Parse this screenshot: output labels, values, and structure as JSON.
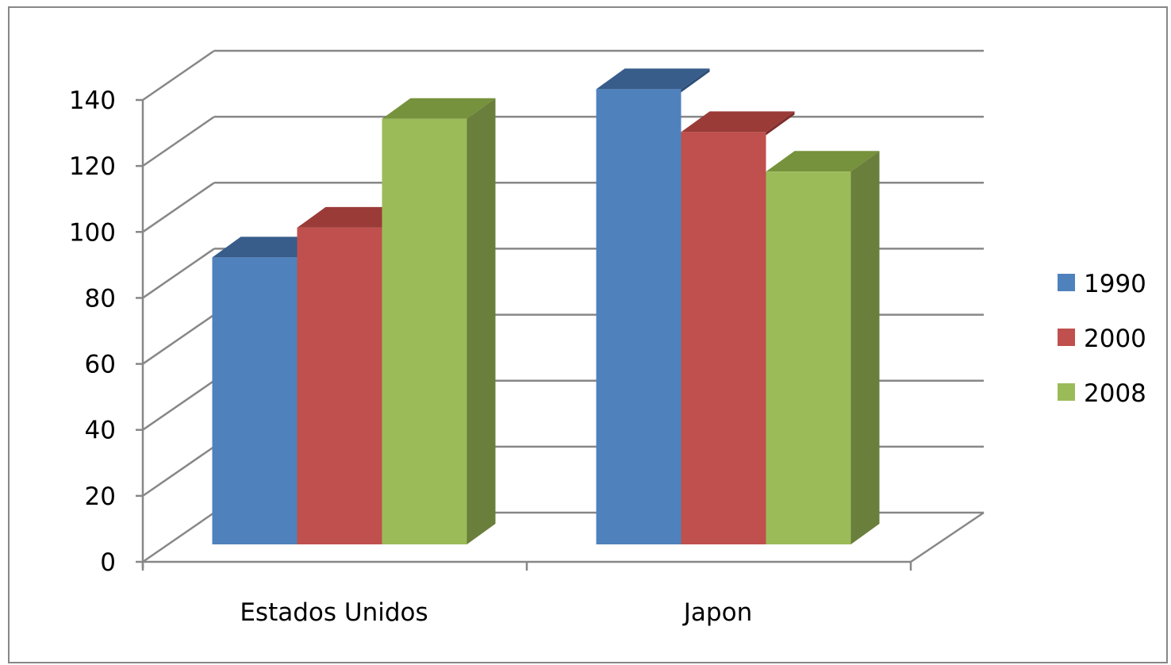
{
  "chart_data": {
    "type": "bar",
    "style": "3d-clustered-column",
    "categories": [
      "Estados Unidos",
      "Japon"
    ],
    "series": [
      {
        "name": "1990",
        "values": [
          87,
          138
        ],
        "color": "#4f81bd",
        "top_color": "#385d8a",
        "side_color": "#2e4f78"
      },
      {
        "name": "2000",
        "values": [
          96,
          125
        ],
        "color": "#c0504d",
        "top_color": "#9b3b38",
        "side_color": "#7e2e2c"
      },
      {
        "name": "2008",
        "values": [
          129,
          113
        ],
        "color": "#9bbb59",
        "top_color": "#76923c",
        "side_color": "#6a7f3c"
      }
    ],
    "yticks": [
      "0",
      "20",
      "40",
      "60",
      "80",
      "100",
      "120",
      "140"
    ],
    "ylim": [
      0,
      140
    ],
    "grid": true,
    "legend_position": "right",
    "title": "",
    "xlabel": "",
    "ylabel": ""
  }
}
